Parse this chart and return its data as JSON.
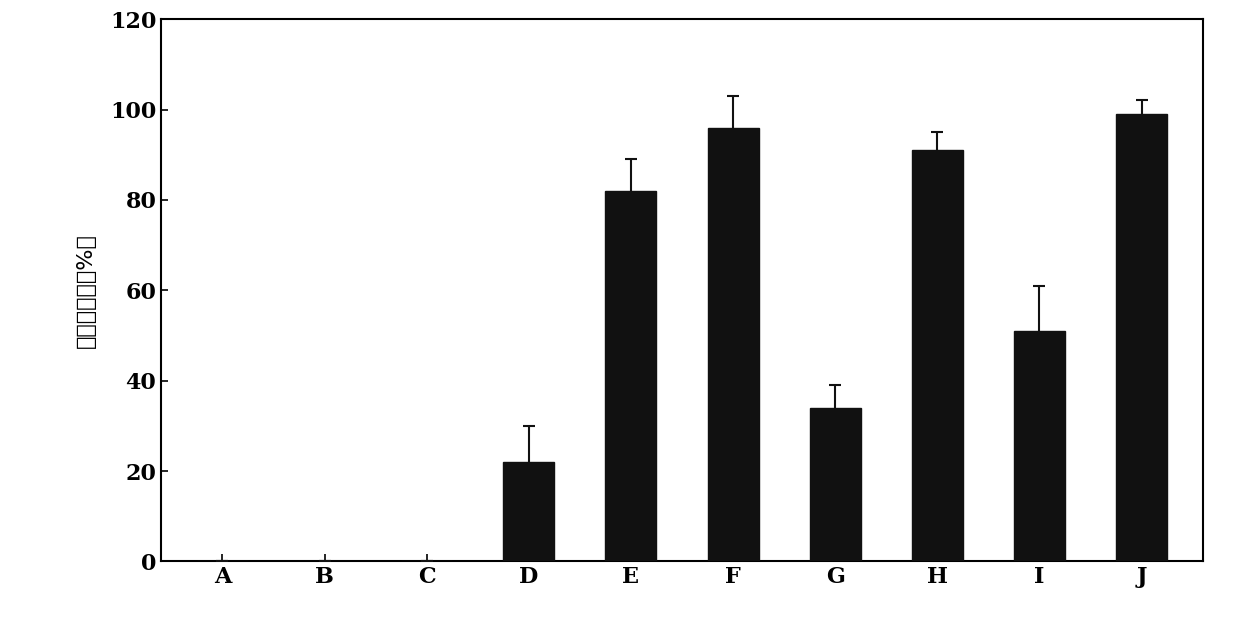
{
  "categories": [
    "A",
    "B",
    "C",
    "D",
    "E",
    "F",
    "G",
    "H",
    "I",
    "J"
  ],
  "values": [
    0,
    0,
    0,
    22,
    82,
    96,
    34,
    91,
    51,
    99
  ],
  "errors": [
    0,
    0,
    0,
    8,
    7,
    7,
    5,
    4,
    10,
    3
  ],
  "bar_color": "#111111",
  "bar_width": 0.5,
  "ylim": [
    0,
    120
  ],
  "yticks": [
    0,
    20,
    40,
    60,
    80,
    100,
    120
  ],
  "ylabel": "相对抑制率（%）",
  "background_color": "#ffffff",
  "tick_fontsize": 16,
  "label_fontsize": 16,
  "ecolor": "#111111",
  "capsize": 4,
  "error_linewidth": 1.5
}
